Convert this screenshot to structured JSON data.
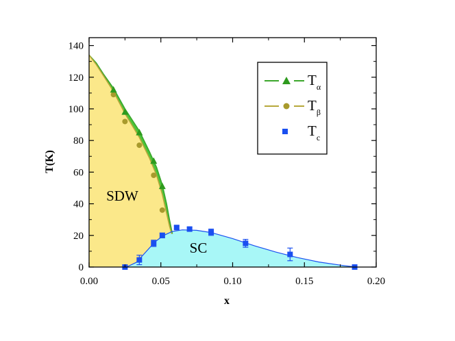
{
  "chart_data": {
    "type": "scatter",
    "title": "",
    "xlabel": "x",
    "ylabel": "T(K)",
    "xlim": [
      0,
      0.2
    ],
    "ylim": [
      0,
      145
    ],
    "x_ticks": [
      "0.00",
      "0.05",
      "0.10",
      "0.15",
      "0.20"
    ],
    "y_ticks": [
      "0",
      "20",
      "40",
      "60",
      "80",
      "100",
      "120",
      "140"
    ],
    "x_tick_values": [
      0,
      0.05,
      0.1,
      0.15,
      0.2
    ],
    "y_tick_values": [
      0,
      20,
      40,
      60,
      80,
      100,
      120,
      140
    ],
    "legend_position": "top-right",
    "regions": [
      {
        "label": "SDW",
        "color": "#fbe88a",
        "x": 0.012,
        "y": 42
      },
      {
        "label": "SC",
        "color": "#a8f7f7",
        "x": 0.07,
        "y": 9
      }
    ],
    "series": [
      {
        "name": "T",
        "subscript": "α",
        "marker": "triangle",
        "color": "#2e9a1e",
        "line_color": "#3aa62a",
        "points": [
          {
            "x": 0.0,
            "y": 134
          },
          {
            "x": 0.017,
            "y": 112
          },
          {
            "x": 0.025,
            "y": 98
          },
          {
            "x": 0.035,
            "y": 85
          },
          {
            "x": 0.045,
            "y": 67
          },
          {
            "x": 0.051,
            "y": 51
          }
        ]
      },
      {
        "name": "T",
        "subscript": "β",
        "marker": "circle",
        "color": "#a89a2c",
        "line_color": "#b6a83a",
        "points": [
          {
            "x": 0.0,
            "y": 134
          },
          {
            "x": 0.017,
            "y": 109
          },
          {
            "x": 0.025,
            "y": 92
          },
          {
            "x": 0.035,
            "y": 77
          },
          {
            "x": 0.045,
            "y": 58
          },
          {
            "x": 0.051,
            "y": 36
          }
        ]
      },
      {
        "name": "T",
        "subscript": "c",
        "marker": "square",
        "color": "#1a4ff0",
        "line_color": "#1a4ff0",
        "points": [
          {
            "x": 0.025,
            "y": 0,
            "err": 0
          },
          {
            "x": 0.035,
            "y": 4.5,
            "err": 3
          },
          {
            "x": 0.045,
            "y": 15,
            "err": 2
          },
          {
            "x": 0.051,
            "y": 20,
            "err": 1.5
          },
          {
            "x": 0.061,
            "y": 25,
            "err": 1
          },
          {
            "x": 0.07,
            "y": 24,
            "err": 1
          },
          {
            "x": 0.085,
            "y": 22,
            "err": 2
          },
          {
            "x": 0.109,
            "y": 15,
            "err": 2.5
          },
          {
            "x": 0.14,
            "y": 8,
            "err": 4
          },
          {
            "x": 0.185,
            "y": 0,
            "err": 0
          }
        ]
      }
    ],
    "tc_curve": [
      [
        0.026,
        0
      ],
      [
        0.033,
        3
      ],
      [
        0.04,
        10
      ],
      [
        0.046,
        16
      ],
      [
        0.052,
        20
      ],
      [
        0.058,
        22.5
      ],
      [
        0.065,
        23.5
      ],
      [
        0.075,
        23.2
      ],
      [
        0.085,
        21.8
      ],
      [
        0.1,
        18
      ],
      [
        0.115,
        13.5
      ],
      [
        0.13,
        9.5
      ],
      [
        0.145,
        6
      ],
      [
        0.16,
        3.2
      ],
      [
        0.175,
        1.2
      ],
      [
        0.186,
        0
      ]
    ],
    "sdw_boundary": [
      [
        0.0,
        134
      ],
      [
        0.005,
        128
      ],
      [
        0.01,
        121
      ],
      [
        0.017,
        111
      ],
      [
        0.025,
        97
      ],
      [
        0.035,
        82
      ],
      [
        0.042,
        69
      ],
      [
        0.047,
        58
      ],
      [
        0.051,
        46
      ],
      [
        0.054,
        34
      ],
      [
        0.056,
        26
      ],
      [
        0.0575,
        21
      ]
    ],
    "alpha_boundary": [
      [
        0.0,
        134
      ],
      [
        0.005,
        129
      ],
      [
        0.01,
        122
      ],
      [
        0.017,
        113
      ],
      [
        0.025,
        100
      ],
      [
        0.035,
        86
      ],
      [
        0.042,
        73
      ],
      [
        0.047,
        63
      ],
      [
        0.051,
        52
      ],
      [
        0.054,
        40
      ],
      [
        0.056,
        30
      ],
      [
        0.058,
        21
      ]
    ]
  }
}
